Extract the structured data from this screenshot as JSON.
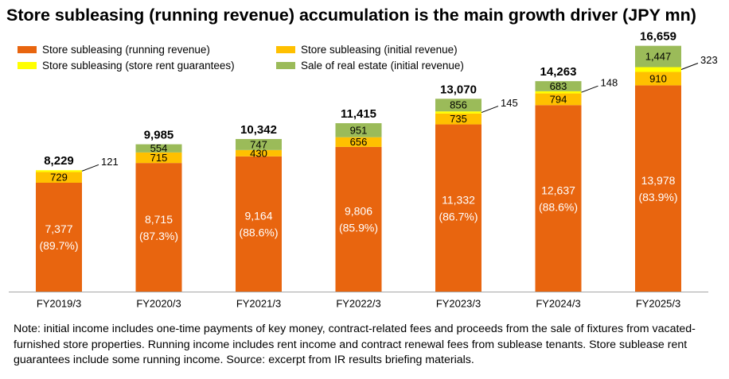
{
  "title": "Store subleasing (running revenue) accumulation is the main growth driver (JPY mn)",
  "colors": {
    "running": "#E8650F",
    "initial": "#FFC000",
    "guarantees": "#FFFF00",
    "real_estate": "#9BBB59"
  },
  "note": "Note: initial income includes one-time payments of key money, contract-related fees and proceeds from the sale of fixtures from vacated-furnished store properties. Running income includes rent income and contract renewal fees from sublease tenants. Store sublease rent guarantees include some running income. Source: excerpt from IR results briefing materials.",
  "chart_data": {
    "type": "bar",
    "stacked": true,
    "title": "Store subleasing (running revenue) accumulation is the main growth driver (JPY mn)",
    "legend_position": "top-left",
    "categories": [
      "FY2019/3",
      "FY2020/3",
      "FY2021/3",
      "FY2022/3",
      "FY2023/3",
      "FY2024/3",
      "FY2025/3"
    ],
    "totals": [
      "8,229",
      "9,985",
      "10,342",
      "11,415",
      "13,070",
      "14,263",
      "16,659"
    ],
    "total_values": [
      8229,
      9985,
      10342,
      11415,
      13070,
      14263,
      16659
    ],
    "series": [
      {
        "key": "running",
        "name": "Store subleasing (running revenue)",
        "color": "#E8650F",
        "values": [
          7377,
          8715,
          9164,
          9806,
          11332,
          12637,
          13978
        ],
        "labels": [
          "7,377",
          "8,715",
          "9,164",
          "9,806",
          "11,332",
          "12,637",
          "13,978"
        ],
        "share_labels": [
          "(89.7%)",
          "(87.3%)",
          "(88.6%)",
          "(85.9%)",
          "(86.7%)",
          "(88.6%)",
          "(83.9%)"
        ]
      },
      {
        "key": "initial",
        "name": "Store subleasing (initial revenue)",
        "color": "#FFC000",
        "values": [
          729,
          715,
          430,
          656,
          735,
          794,
          910
        ],
        "labels": [
          "729",
          "715",
          "430",
          "656",
          "735",
          "794",
          "910"
        ]
      },
      {
        "key": "guarantees",
        "name": "Store subleasing (store rent guarantees)",
        "color": "#FFFF00",
        "values": [
          121,
          0,
          0,
          0,
          145,
          148,
          323
        ],
        "labels": [
          "121",
          "",
          "",
          "",
          "145",
          "148",
          "323"
        ]
      },
      {
        "key": "real_estate",
        "name": "Sale of real estate (initial revenue)",
        "color": "#9BBB59",
        "values": [
          0,
          554,
          747,
          951,
          856,
          683,
          1447
        ],
        "labels": [
          "",
          "554",
          "747",
          "951",
          "856",
          "683",
          "1,447"
        ]
      }
    ],
    "ylim": [
      0,
      17500
    ],
    "grid": false,
    "xlabel": "",
    "ylabel": ""
  }
}
